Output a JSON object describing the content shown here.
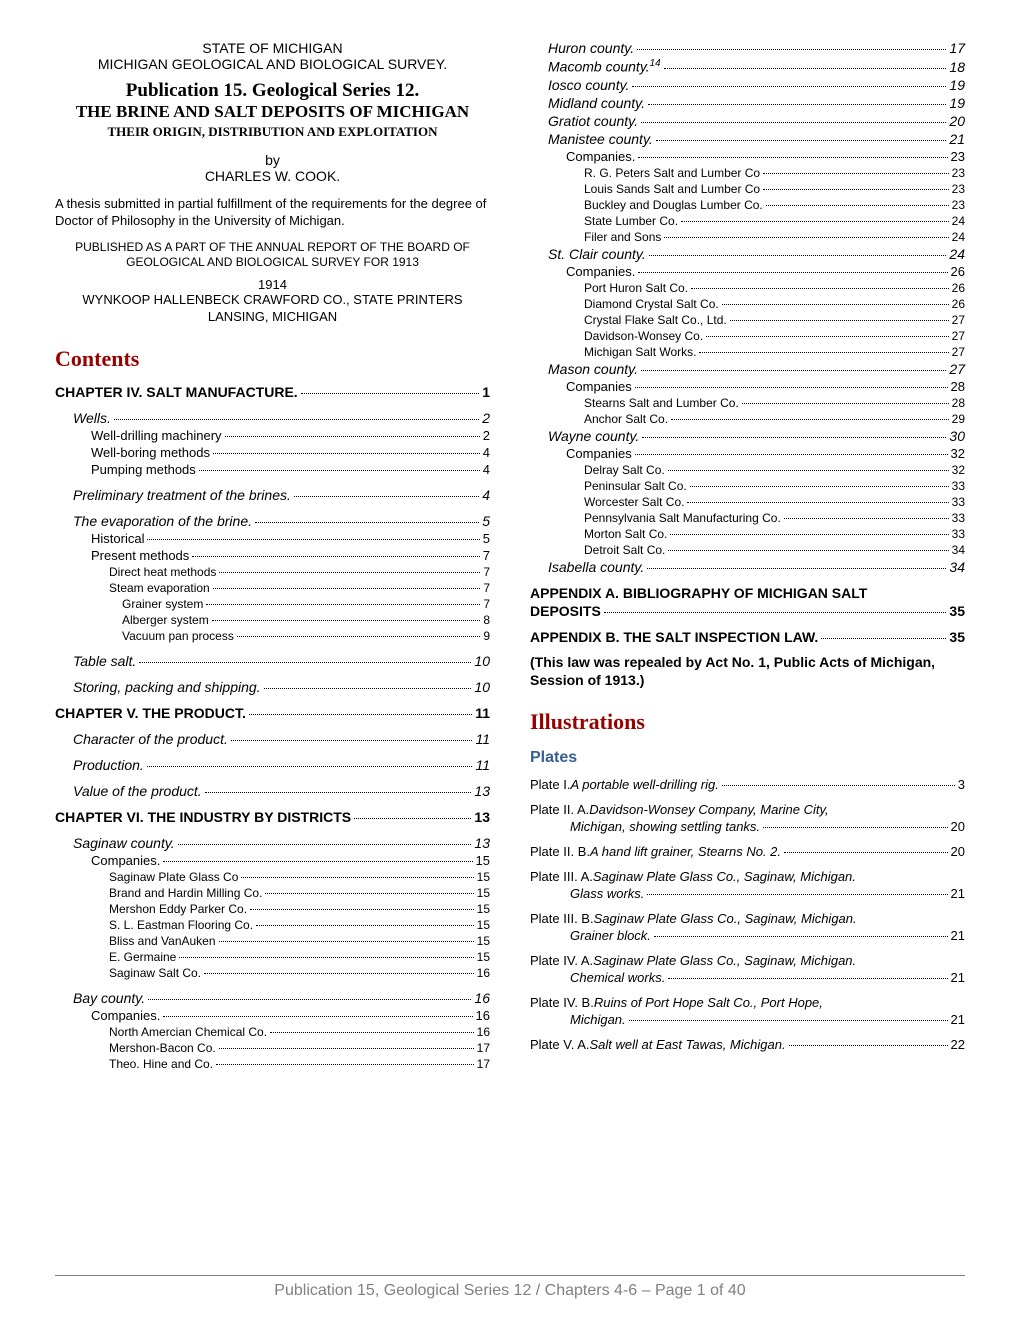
{
  "colors": {
    "text": "#000000",
    "heading_red": "#990000",
    "heading_blue": "#365f91",
    "footer_gray": "#808080",
    "background": "#ffffff"
  },
  "fonts": {
    "serif": "Georgia, 'Times New Roman', serif",
    "sans": "Arial, Helvetica, sans-serif",
    "title_size": 19,
    "heading_size": 22,
    "subheading_size": 16,
    "body_size": 13
  },
  "header": {
    "state": "STATE OF MICHIGAN",
    "survey": "MICHIGAN GEOLOGICAL AND BIOLOGICAL SURVEY.",
    "pub_title": "Publication 15.  Geological Series 12.",
    "brine_title": "THE BRINE AND SALT DEPOSITS OF MICHIGAN",
    "subtitle": "THEIR ORIGIN, DISTRIBUTION AND EXPLOITATION",
    "by": "by",
    "author": "CHARLES W. COOK.",
    "thesis": "A thesis submitted in partial fulfillment of the requirements for the degree of Doctor of Philosophy in the University of Michigan.",
    "published_as": "PUBLISHED AS A PART OF THE ANNUAL REPORT OF THE BOARD OF GEOLOGICAL AND BIOLOGICAL SURVEY FOR 1913",
    "year": "1914",
    "printer1": "WYNKOOP HALLENBECK CRAWFORD CO., STATE PRINTERS",
    "printer2": "LANSING, MICHIGAN"
  },
  "headings": {
    "contents": "Contents",
    "illustrations": "Illustrations",
    "plates": "Plates"
  },
  "col1_toc": [
    {
      "label": "CHAPTER IV.  SALT MANUFACTURE.",
      "page": "1",
      "lvl": 0,
      "bold": true,
      "italic": false,
      "sz": 14,
      "gap": true
    },
    {
      "label": "Wells.",
      "page": "2",
      "lvl": 1,
      "bold": false,
      "italic": true,
      "sz": 14,
      "gap": true
    },
    {
      "label": "Well-drilling machinery",
      "page": "2",
      "lvl": 2,
      "bold": false,
      "italic": false,
      "sz": 13
    },
    {
      "label": "Well-boring methods",
      "page": "4",
      "lvl": 2,
      "bold": false,
      "italic": false,
      "sz": 13
    },
    {
      "label": "Pumping methods",
      "page": "4",
      "lvl": 2,
      "bold": false,
      "italic": false,
      "sz": 13
    },
    {
      "label": "Preliminary treatment of the brines.",
      "page": "4",
      "lvl": 1,
      "bold": false,
      "italic": true,
      "sz": 14,
      "gap": true
    },
    {
      "label": "The evaporation of the brine.",
      "page": "5",
      "lvl": 1,
      "bold": false,
      "italic": true,
      "sz": 14,
      "gap": true
    },
    {
      "label": "Historical",
      "page": "5",
      "lvl": 2,
      "bold": false,
      "italic": false,
      "sz": 13
    },
    {
      "label": "Present methods",
      "page": "7",
      "lvl": 2,
      "bold": false,
      "italic": false,
      "sz": 13
    },
    {
      "label": "Direct heat methods",
      "page": "7",
      "lvl": 3,
      "bold": false,
      "italic": false,
      "sz": 12
    },
    {
      "label": "Steam evaporation",
      "page": "7",
      "lvl": 3,
      "bold": false,
      "italic": false,
      "sz": 12
    },
    {
      "label": "Grainer system",
      "page": "7",
      "lvl": 4,
      "bold": false,
      "italic": false,
      "sz": 12
    },
    {
      "label": "Alberger system",
      "page": "8",
      "lvl": 4,
      "bold": false,
      "italic": false,
      "sz": 12
    },
    {
      "label": "Vacuum pan process",
      "page": "9",
      "lvl": 4,
      "bold": false,
      "italic": false,
      "sz": 12
    },
    {
      "label": "Table salt.",
      "page": "10",
      "lvl": 1,
      "bold": false,
      "italic": true,
      "sz": 14,
      "gap": true
    },
    {
      "label": "Storing, packing and shipping.",
      "page": "10",
      "lvl": 1,
      "bold": false,
      "italic": true,
      "sz": 14,
      "gap": true
    },
    {
      "label": "CHAPTER V.  THE PRODUCT.",
      "page": "11",
      "lvl": 0,
      "bold": true,
      "italic": false,
      "sz": 14,
      "gap": true
    },
    {
      "label": "Character of the product.",
      "page": "11",
      "lvl": 1,
      "bold": false,
      "italic": true,
      "sz": 14,
      "gap": true
    },
    {
      "label": "Production.",
      "page": "11",
      "lvl": 1,
      "bold": false,
      "italic": true,
      "sz": 14,
      "gap": true
    },
    {
      "label": "Value of the product.",
      "page": "13",
      "lvl": 1,
      "bold": false,
      "italic": true,
      "sz": 14,
      "gap": true
    },
    {
      "label": "CHAPTER VI.  THE INDUSTRY BY DISTRICTS",
      "page": "13",
      "lvl": 0,
      "bold": true,
      "italic": false,
      "sz": 14,
      "gap": true
    },
    {
      "label": "Saginaw county.",
      "page": "13",
      "lvl": 1,
      "bold": false,
      "italic": true,
      "sz": 14,
      "gap": true
    },
    {
      "label": "Companies.",
      "page": "15",
      "lvl": 2,
      "bold": false,
      "italic": false,
      "sz": 13
    },
    {
      "label": "Saginaw Plate Glass Co",
      "page": "15",
      "lvl": 3,
      "bold": false,
      "italic": false,
      "sz": 12
    },
    {
      "label": "Brand and Hardin Milling Co.",
      "page": "15",
      "lvl": 3,
      "bold": false,
      "italic": false,
      "sz": 12
    },
    {
      "label": "Mershon Eddy Parker Co.",
      "page": "15",
      "lvl": 3,
      "bold": false,
      "italic": false,
      "sz": 12
    },
    {
      "label": "S. L. Eastman Flooring Co.",
      "page": "15",
      "lvl": 3,
      "bold": false,
      "italic": false,
      "sz": 12
    },
    {
      "label": "Bliss and VanAuken",
      "page": "15",
      "lvl": 3,
      "bold": false,
      "italic": false,
      "sz": 12
    },
    {
      "label": "E. Germaine",
      "page": "15",
      "lvl": 3,
      "bold": false,
      "italic": false,
      "sz": 12
    },
    {
      "label": "Saginaw Salt Co.",
      "page": "16",
      "lvl": 3,
      "bold": false,
      "italic": false,
      "sz": 12
    },
    {
      "label": "Bay county.",
      "page": "16",
      "lvl": 1,
      "bold": false,
      "italic": true,
      "sz": 14,
      "gap": true
    },
    {
      "label": "Companies.",
      "page": "16",
      "lvl": 2,
      "bold": false,
      "italic": false,
      "sz": 13
    },
    {
      "label": "North Amercian Chemical Co.",
      "page": "16",
      "lvl": 3,
      "bold": false,
      "italic": false,
      "sz": 12
    },
    {
      "label": "Mershon-Bacon Co.",
      "page": "17",
      "lvl": 3,
      "bold": false,
      "italic": false,
      "sz": 12
    },
    {
      "label": "Theo. Hine and Co.",
      "page": "17",
      "lvl": 3,
      "bold": false,
      "italic": false,
      "sz": 12
    }
  ],
  "col2_toc": [
    {
      "label": "Huron county.",
      "page": "17",
      "lvl": 1,
      "bold": false,
      "italic": true,
      "sz": 14
    },
    {
      "label": "Macomb county.__SUP__",
      "page": "18",
      "lvl": 1,
      "bold": false,
      "italic": true,
      "sz": 14,
      "sup": "14"
    },
    {
      "label": "Iosco county.",
      "page": "19",
      "lvl": 1,
      "bold": false,
      "italic": true,
      "sz": 14
    },
    {
      "label": "Midland county.",
      "page": "19",
      "lvl": 1,
      "bold": false,
      "italic": true,
      "sz": 14
    },
    {
      "label": "Gratiot county.",
      "page": "20",
      "lvl": 1,
      "bold": false,
      "italic": true,
      "sz": 14
    },
    {
      "label": "Manistee county.",
      "page": "21",
      "lvl": 1,
      "bold": false,
      "italic": true,
      "sz": 14
    },
    {
      "label": "Companies.",
      "page": "23",
      "lvl": 2,
      "bold": false,
      "italic": false,
      "sz": 13
    },
    {
      "label": "R. G. Peters Salt and Lumber Co",
      "page": "23",
      "lvl": 3,
      "bold": false,
      "italic": false,
      "sz": 12
    },
    {
      "label": "Louis Sands Salt and Lumber Co",
      "page": "23",
      "lvl": 3,
      "bold": false,
      "italic": false,
      "sz": 12
    },
    {
      "label": "Buckley and Douglas Lumber Co.",
      "page": "23",
      "lvl": 3,
      "bold": false,
      "italic": false,
      "sz": 12
    },
    {
      "label": "State Lumber Co.",
      "page": "24",
      "lvl": 3,
      "bold": false,
      "italic": false,
      "sz": 12
    },
    {
      "label": "Filer and Sons",
      "page": "24",
      "lvl": 3,
      "bold": false,
      "italic": false,
      "sz": 12
    },
    {
      "label": "St. Clair county.",
      "page": "24",
      "lvl": 1,
      "bold": false,
      "italic": true,
      "sz": 14
    },
    {
      "label": "Companies.",
      "page": "26",
      "lvl": 2,
      "bold": false,
      "italic": false,
      "sz": 13
    },
    {
      "label": "Port Huron Salt Co.",
      "page": "26",
      "lvl": 3,
      "bold": false,
      "italic": false,
      "sz": 12
    },
    {
      "label": "Diamond Crystal Salt Co.",
      "page": "26",
      "lvl": 3,
      "bold": false,
      "italic": false,
      "sz": 12
    },
    {
      "label": "Crystal Flake Salt Co., Ltd.",
      "page": "27",
      "lvl": 3,
      "bold": false,
      "italic": false,
      "sz": 12
    },
    {
      "label": "Davidson-Wonsey Co.",
      "page": "27",
      "lvl": 3,
      "bold": false,
      "italic": false,
      "sz": 12
    },
    {
      "label": "Michigan Salt Works.",
      "page": "27",
      "lvl": 3,
      "bold": false,
      "italic": false,
      "sz": 12
    },
    {
      "label": "Mason county.",
      "page": "27",
      "lvl": 1,
      "bold": false,
      "italic": true,
      "sz": 14
    },
    {
      "label": "Companies",
      "page": "28",
      "lvl": 2,
      "bold": false,
      "italic": false,
      "sz": 13
    },
    {
      "label": "Stearns Salt and Lumber Co.",
      "page": "28",
      "lvl": 3,
      "bold": false,
      "italic": false,
      "sz": 12
    },
    {
      "label": "Anchor Salt Co.",
      "page": "29",
      "lvl": 3,
      "bold": false,
      "italic": false,
      "sz": 12
    },
    {
      "label": "Wayne county.",
      "page": "30",
      "lvl": 1,
      "bold": false,
      "italic": true,
      "sz": 14
    },
    {
      "label": "Companies",
      "page": "32",
      "lvl": 2,
      "bold": false,
      "italic": false,
      "sz": 13
    },
    {
      "label": "Delray Salt Co.",
      "page": "32",
      "lvl": 3,
      "bold": false,
      "italic": false,
      "sz": 12
    },
    {
      "label": "Peninsular Salt Co.",
      "page": "33",
      "lvl": 3,
      "bold": false,
      "italic": false,
      "sz": 12
    },
    {
      "label": "Worcester Salt Co.",
      "page": "33",
      "lvl": 3,
      "bold": false,
      "italic": false,
      "sz": 12
    },
    {
      "label": "Pennsylvania Salt Manufacturing Co.",
      "page": "33",
      "lvl": 3,
      "bold": false,
      "italic": false,
      "sz": 12
    },
    {
      "label": "Morton Salt Co.",
      "page": "33",
      "lvl": 3,
      "bold": false,
      "italic": false,
      "sz": 12
    },
    {
      "label": "Detroit Salt Co.",
      "page": "34",
      "lvl": 3,
      "bold": false,
      "italic": false,
      "sz": 12
    },
    {
      "label": "Isabella county.",
      "page": "34",
      "lvl": 1,
      "bold": false,
      "italic": true,
      "sz": 14
    },
    {
      "label": "APPENDIX A.  BIBLIOGRAPHY OF MICHIGAN SALT DEPOSITS",
      "page": "35",
      "lvl": 0,
      "bold": true,
      "italic": false,
      "sz": 14,
      "gap": true,
      "wrap": true,
      "line1": "APPENDIX A.  BIBLIOGRAPHY OF MICHIGAN SALT",
      "line2": "DEPOSITS"
    },
    {
      "label": "APPENDIX B.  THE SALT INSPECTION LAW.",
      "page": "35",
      "lvl": 0,
      "bold": true,
      "italic": false,
      "sz": 14,
      "gap": true
    }
  ],
  "note": "(This law was repealed by Act No. 1, Public Acts of Michigan, Session of 1913.)",
  "plates": [
    {
      "prefix": "Plate I.  ",
      "italic": "A portable well-drilling rig.",
      "page": "3",
      "wrap": false
    },
    {
      "prefix": "Plate II. A.  ",
      "italic_line1": "Davidson-Wonsey Company, Marine City,",
      "italic_line2": "Michigan, showing settling tanks.",
      "page": "20",
      "wrap": true
    },
    {
      "prefix": "Plate II. B.  ",
      "italic": "A hand lift grainer, Stearns No. 2.",
      "page": "20",
      "wrap": false
    },
    {
      "prefix": "Plate III. A.  ",
      "italic_line1": "Saginaw Plate Glass Co., Saginaw, Michigan.",
      "italic_line2": "Glass works.",
      "page": "21",
      "wrap": true
    },
    {
      "prefix": "Plate III. B.  ",
      "italic_line1": "Saginaw Plate Glass Co., Saginaw, Michigan.",
      "italic_line2": "Grainer block.",
      "page": "21",
      "wrap": true
    },
    {
      "prefix": "Plate IV. A.  ",
      "italic_line1": "Saginaw Plate Glass Co., Saginaw, Michigan.",
      "italic_line2": "Chemical works.",
      "page": "21",
      "wrap": true
    },
    {
      "prefix": "Plate IV. B.  ",
      "italic_line1": "Ruins of Port Hope Salt Co., Port Hope,",
      "italic_line2": "Michigan.",
      "page": "21",
      "wrap": true
    },
    {
      "prefix": "Plate V. A.  ",
      "italic": "Salt well at East Tawas, Michigan.",
      "page": "22",
      "wrap": false
    }
  ],
  "footer": "Publication 15, Geological Series 12 / Chapters 4-6 – Page 1 of 40"
}
